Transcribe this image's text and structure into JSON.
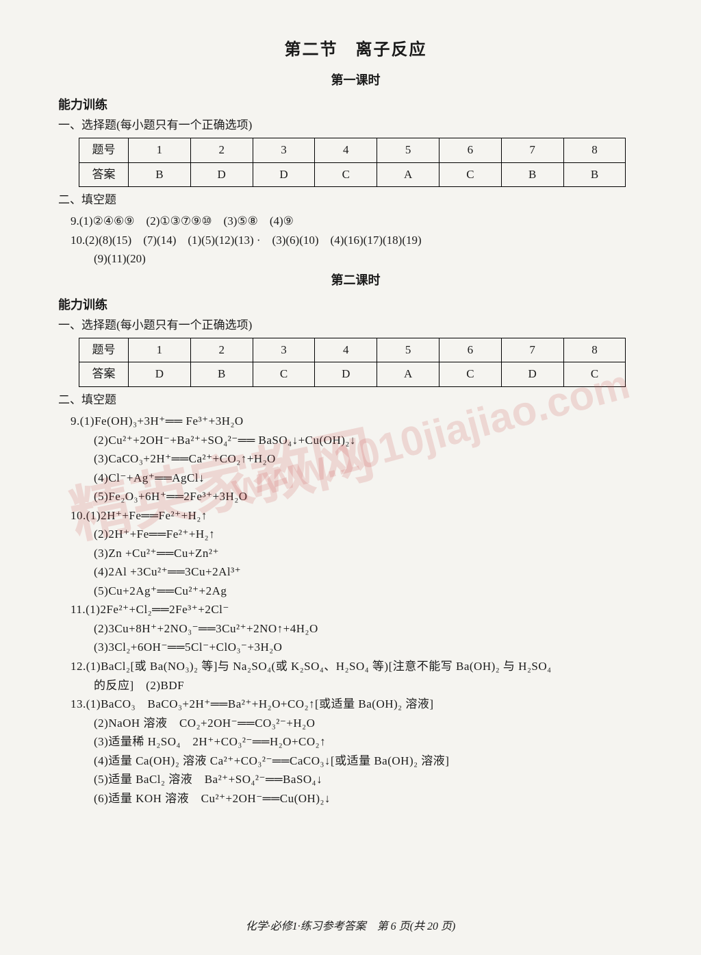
{
  "title_main": "第二节　离子反应",
  "lesson1_title": "第一课时",
  "lesson2_title": "第二课时",
  "ability_label": "能力训练",
  "mc_label": "一、选择题(每小题只有一个正确选项)",
  "fill_label": "二、填空题",
  "table1": {
    "header_label": "题号",
    "row_label": "答案",
    "nums": [
      "1",
      "2",
      "3",
      "4",
      "5",
      "6",
      "7",
      "8"
    ],
    "ans": [
      "B",
      "D",
      "D",
      "C",
      "A",
      "C",
      "B",
      "B"
    ]
  },
  "table2": {
    "header_label": "题号",
    "row_label": "答案",
    "nums": [
      "1",
      "2",
      "3",
      "4",
      "5",
      "6",
      "7",
      "8"
    ],
    "ans": [
      "D",
      "B",
      "C",
      "D",
      "A",
      "C",
      "D",
      "C"
    ]
  },
  "q9a": "9.(1)②④⑥⑨　(2)①③⑦⑨⑩　(3)⑤⑧　(4)⑨",
  "q10a_l1": "10.(2)(8)(15)　(7)(14)　(1)(5)(12)(13) ·　(3)(6)(10)　(4)(16)(17)(18)(19)",
  "q10a_l2": "(9)(11)(20)",
  "l2_q9_1": "9.(1)Fe(OH)₃+3H⁺══ Fe³⁺+3H₂O",
  "l2_q9_2": "(2)Cu²⁺+2OH⁻+Ba²⁺+SO₄²⁻══ BaSO₄↓+Cu(OH)₂↓",
  "l2_q9_3": "(3)CaCO₃+2H⁺══Ca²⁺+CO₂↑+H₂O",
  "l2_q9_4": "(4)Cl⁻+Ag⁺══AgCl↓",
  "l2_q9_5": "(5)Fe₂O₃+6H⁺══2Fe³⁺+3H₂O",
  "l2_q10_1": "10.(1)2H⁺+Fe══Fe²⁺+H₂↑",
  "l2_q10_2": "(2)2H⁺+Fe══Fe²⁺+H₂↑",
  "l2_q10_3": "(3)Zn +Cu²⁺══Cu+Zn²⁺",
  "l2_q10_4": "(4)2Al +3Cu²⁺══3Cu+2Al³⁺",
  "l2_q10_5": "(5)Cu+2Ag⁺══Cu²⁺+2Ag",
  "l2_q11_1": "11.(1)2Fe²⁺+Cl₂══2Fe³⁺+2Cl⁻",
  "l2_q11_2": "(2)3Cu+8H⁺+2NO₃⁻══3Cu²⁺+2NO↑+4H₂O",
  "l2_q11_3": "(3)3Cl₂+6OH⁻══5Cl⁻+ClO₃⁻+3H₂O",
  "l2_q12_1": "12.(1)BaCl₂[或 Ba(NO₃)₂ 等]与 Na₂SO₄(或 K₂SO₄、H₂SO₄ 等)[注意不能写 Ba(OH)₂ 与 H₂SO₄",
  "l2_q12_2": "的反应]　(2)BDF",
  "l2_q13_1": "13.(1)BaCO₃　BaCO₃+2H⁺══Ba²⁺+H₂O+CO₂↑[或适量 Ba(OH)₂ 溶液]",
  "l2_q13_2": "(2)NaOH 溶液　CO₂+2OH⁻══CO₃²⁻+H₂O",
  "l2_q13_3": "(3)适量稀 H₂SO₄　2H⁺+CO₃²⁻══H₂O+CO₂↑",
  "l2_q13_4": "(4)适量 Ca(OH)₂ 溶液 Ca²⁺+CO₃²⁻══CaCO₃↓[或适量 Ba(OH)₂ 溶液]",
  "l2_q13_5": "(5)适量 BaCl₂ 溶液　Ba²⁺+SO₄²⁻══BaSO₄↓",
  "l2_q13_6": "(6)适量 KOH 溶液　Cu²⁺+2OH⁻══Cu(OH)₂↓",
  "footer": "化学·必修1·练习参考答案　第 6 页(共 20 页)",
  "watermark1": "精英家教网",
  "watermark2": "www.1010jiajiao.com",
  "colors": {
    "bg": "#f5f4f0",
    "text": "#1a1a1a",
    "border": "#000000",
    "wm": "rgba(200,70,70,0.17)"
  }
}
